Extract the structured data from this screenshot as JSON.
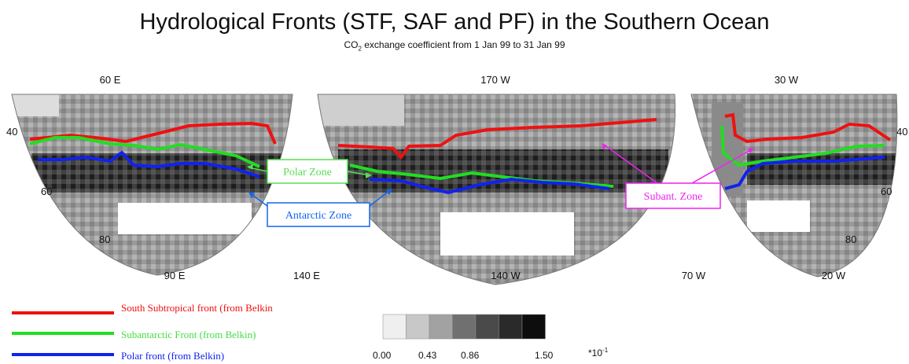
{
  "title": "Hydrological Fronts (STF, SAF and PF) in the Southern Ocean",
  "subtitle_prefix": "CO",
  "subtitle_sub": "2",
  "subtitle_suffix": " exchange coefficient from  1 Jan 99 to 31 Jan 99",
  "top_longitudes": [
    "60 E",
    "170 W",
    "30 W"
  ],
  "bottom_longitudes": [
    "90 E",
    "140 E",
    "140 W",
    "70 W",
    "20 W"
  ],
  "latitudes": [
    "40",
    "60",
    "80",
    "40",
    "60",
    "80"
  ],
  "zones": {
    "polar": "Polar Zone",
    "antarctic": "Antarctic Zone",
    "subant": "Subant. Zone"
  },
  "legend": [
    {
      "label": "South Subtropical front (from Belkin",
      "color": "#ee1111"
    },
    {
      "label": "Subantarctic Front (from Belkin)",
      "color": "#22dd22"
    },
    {
      "label": "Polar front (from Belkin)",
      "color": "#1122ee"
    }
  ],
  "colorbar": {
    "shades": [
      "#efefef",
      "#c8c8c8",
      "#a2a2a2",
      "#707070",
      "#4a4a4a",
      "#2a2a2a",
      "#0d0d0d"
    ],
    "ticks": [
      "0.00",
      "0.43",
      "0.86",
      "1.50"
    ],
    "scale": "*10",
    "scale_exp": "-1"
  },
  "colors": {
    "stf": "#ee1111",
    "saf": "#22dd22",
    "pf": "#1122ee",
    "zone_polar": "#55dd55",
    "zone_antarctic": "#1166ee",
    "zone_subant": "#ee22ee"
  }
}
